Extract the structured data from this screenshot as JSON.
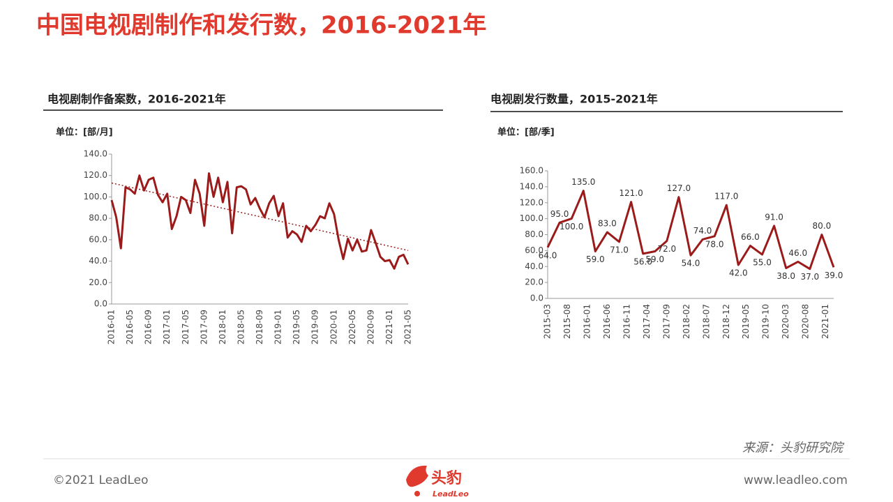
{
  "header": {
    "title": "中国电视剧制作和发行数，2016-2021年"
  },
  "chart_data": [
    {
      "type": "line",
      "title": "电视剧制作备案数，2016-2021年",
      "unit": "单位：[部/月]",
      "color": "#9b1b1b",
      "categories": [
        "2016-01",
        null,
        null,
        null,
        "2016-05",
        null,
        null,
        null,
        "2016-09",
        null,
        null,
        null,
        "2017-01",
        null,
        null,
        null,
        "2017-05",
        null,
        null,
        null,
        "2017-09",
        null,
        null,
        null,
        "2018-01",
        null,
        null,
        null,
        "2018-05",
        null,
        null,
        null,
        "2018-09",
        null,
        null,
        null,
        "2019-01",
        null,
        null,
        null,
        "2019-05",
        null,
        null,
        null,
        "2019-09",
        null,
        null,
        null,
        "2020-01",
        null,
        null,
        null,
        "2020-05",
        null,
        null,
        null,
        "2020-09",
        null,
        null,
        null,
        "2021-01",
        null,
        null,
        null,
        "2021-05"
      ],
      "values": [
        97,
        81,
        52,
        109,
        107,
        103,
        120,
        106,
        116,
        118,
        102,
        95,
        103,
        70,
        82,
        100,
        97,
        85,
        116,
        103,
        73,
        122,
        100,
        118,
        95,
        114,
        66,
        109,
        110,
        107,
        93,
        99,
        89,
        81,
        94,
        101,
        82,
        94,
        62,
        68,
        65,
        58,
        73,
        68,
        74,
        82,
        80,
        94,
        84,
        60,
        42,
        61,
        50,
        60,
        49,
        50,
        69,
        57,
        44,
        40,
        41,
        33,
        44,
        46,
        37
      ],
      "trendline": [
        113,
        50
      ],
      "ylim": [
        0,
        140
      ],
      "yticks": [
        {
          "value": 0,
          "label": "0.0"
        },
        {
          "value": 20,
          "label": "20.0"
        },
        {
          "value": 40,
          "label": "40.0"
        },
        {
          "value": 60,
          "label": "60.0"
        },
        {
          "value": 80,
          "label": "80.0"
        },
        {
          "value": 100,
          "label": "100.0"
        },
        {
          "value": 120,
          "label": "120.0"
        },
        {
          "value": 140,
          "label": "140.0"
        }
      ]
    },
    {
      "type": "line",
      "title": "电视剧发行数量，2015-2021年",
      "unit": "单位：[部/季]",
      "color": "#9b1b1b",
      "x": [
        "2015-03",
        "2015-06",
        "2015-09",
        "2015-12",
        "2016-03",
        "2016-06",
        "2016-09",
        "2016-12",
        "2017-03",
        "2017-06",
        "2017-09",
        "2017-12",
        "2018-03",
        "2018-06",
        "2018-09",
        "2018-12",
        "2019-03",
        "2019-06",
        "2019-09",
        "2019-12",
        "2020-03",
        "2020-06",
        "2020-09",
        "2020-12",
        "2021-03"
      ],
      "values": [
        64,
        95,
        100,
        135,
        59,
        83,
        71,
        121,
        56,
        59,
        72,
        127,
        54,
        74,
        78,
        117,
        42,
        66,
        55,
        91,
        38,
        46,
        37,
        80,
        39
      ],
      "value_labels": [
        "64.0",
        "95.0",
        "100.0",
        "135.0",
        "59.0",
        "83.0",
        "71.0",
        "121.0",
        "56.0",
        "59.0",
        "72.0",
        "127.0",
        "54.0",
        "74.0",
        "78.0",
        "117.0",
        "42.0",
        "66.0",
        "55.0",
        "91.0",
        "38.0",
        "46.0",
        "37.0",
        "80.0",
        "39.0"
      ],
      "xticks": [
        "2015-03",
        "2015-08",
        "2016-01",
        "2016-06",
        "2016-11",
        "2017-04",
        "2017-09",
        "2018-02",
        "2018-07",
        "2018-12",
        "2019-05",
        "2019-10",
        "2020-03",
        "2020-08",
        "2021-01"
      ],
      "ylim": [
        0,
        160
      ],
      "yticks": [
        {
          "value": 0,
          "label": "0.0"
        },
        {
          "value": 20,
          "label": "20.0"
        },
        {
          "value": 40,
          "label": "40.0"
        },
        {
          "value": 60,
          "label": "60.0"
        },
        {
          "value": 80,
          "label": "80.0"
        },
        {
          "value": 100,
          "label": "100.0"
        },
        {
          "value": 120,
          "label": "120.0"
        },
        {
          "value": 140,
          "label": "140.0"
        },
        {
          "value": 160,
          "label": "160.0"
        }
      ]
    }
  ],
  "footer": {
    "source": "来源：头豹研究院",
    "copyright": "©2021 LeadLeo",
    "website": "www.leadleo.com",
    "logo_cn": "头豹",
    "logo_en": "LeadLeo"
  }
}
